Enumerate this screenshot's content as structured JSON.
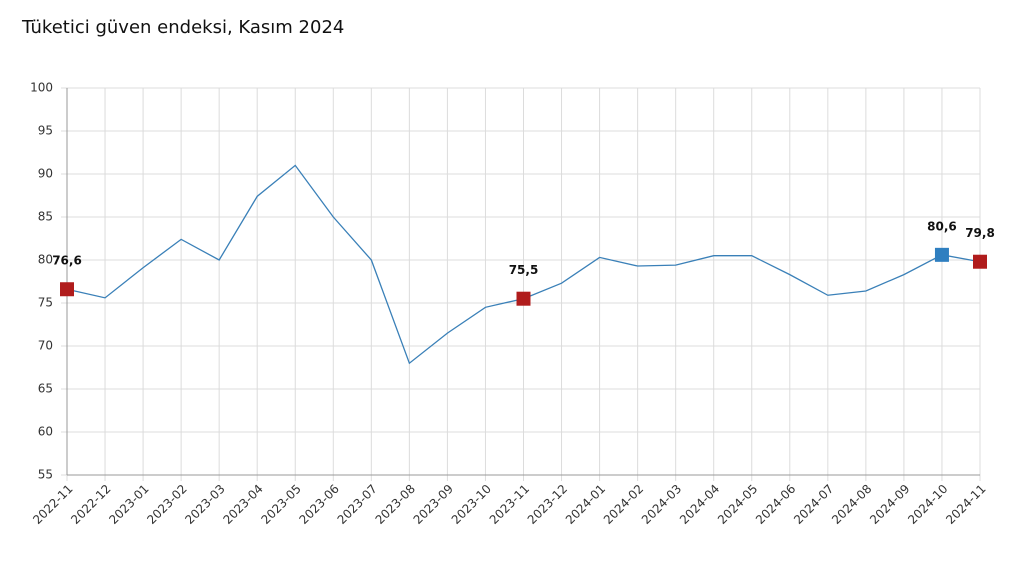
{
  "chart_data": {
    "type": "line",
    "title": "Tüketici güven endeksi, Kasım 2024",
    "categories": [
      "2022-11",
      "2022-12",
      "2023-01",
      "2023-02",
      "2023-03",
      "2023-04",
      "2023-05",
      "2023-06",
      "2023-07",
      "2023-08",
      "2023-09",
      "2023-10",
      "2023-11",
      "2023-12",
      "2024-01",
      "2024-02",
      "2024-03",
      "2024-04",
      "2024-05",
      "2024-06",
      "2024-07",
      "2024-08",
      "2024-09",
      "2024-10",
      "2024-11"
    ],
    "series": [
      {
        "color": "#3a80b8",
        "values": [
          76.6,
          75.6,
          79.1,
          82.4,
          80.0,
          87.4,
          91.0,
          85.0,
          80.0,
          68.0,
          71.5,
          74.5,
          75.5,
          77.3,
          80.3,
          79.3,
          79.4,
          80.5,
          80.5,
          78.3,
          75.9,
          76.4,
          78.3,
          80.6,
          79.8
        ],
        "value_labels": [
          "76,6",
          null,
          null,
          null,
          null,
          null,
          null,
          null,
          null,
          null,
          null,
          null,
          "75,5",
          null,
          null,
          null,
          null,
          null,
          null,
          null,
          null,
          null,
          null,
          "80,6",
          "79,8"
        ],
        "marker_colors": [
          "#b01c1c",
          null,
          null,
          null,
          null,
          null,
          null,
          null,
          null,
          null,
          null,
          null,
          "#b01c1c",
          null,
          null,
          null,
          null,
          null,
          null,
          null,
          null,
          null,
          null,
          "#2f7fc0",
          "#b01c1c"
        ]
      }
    ],
    "ylim": [
      55,
      100
    ],
    "yticks": [
      55,
      60,
      65,
      70,
      75,
      80,
      85,
      90,
      95,
      100
    ],
    "grid": true
  }
}
